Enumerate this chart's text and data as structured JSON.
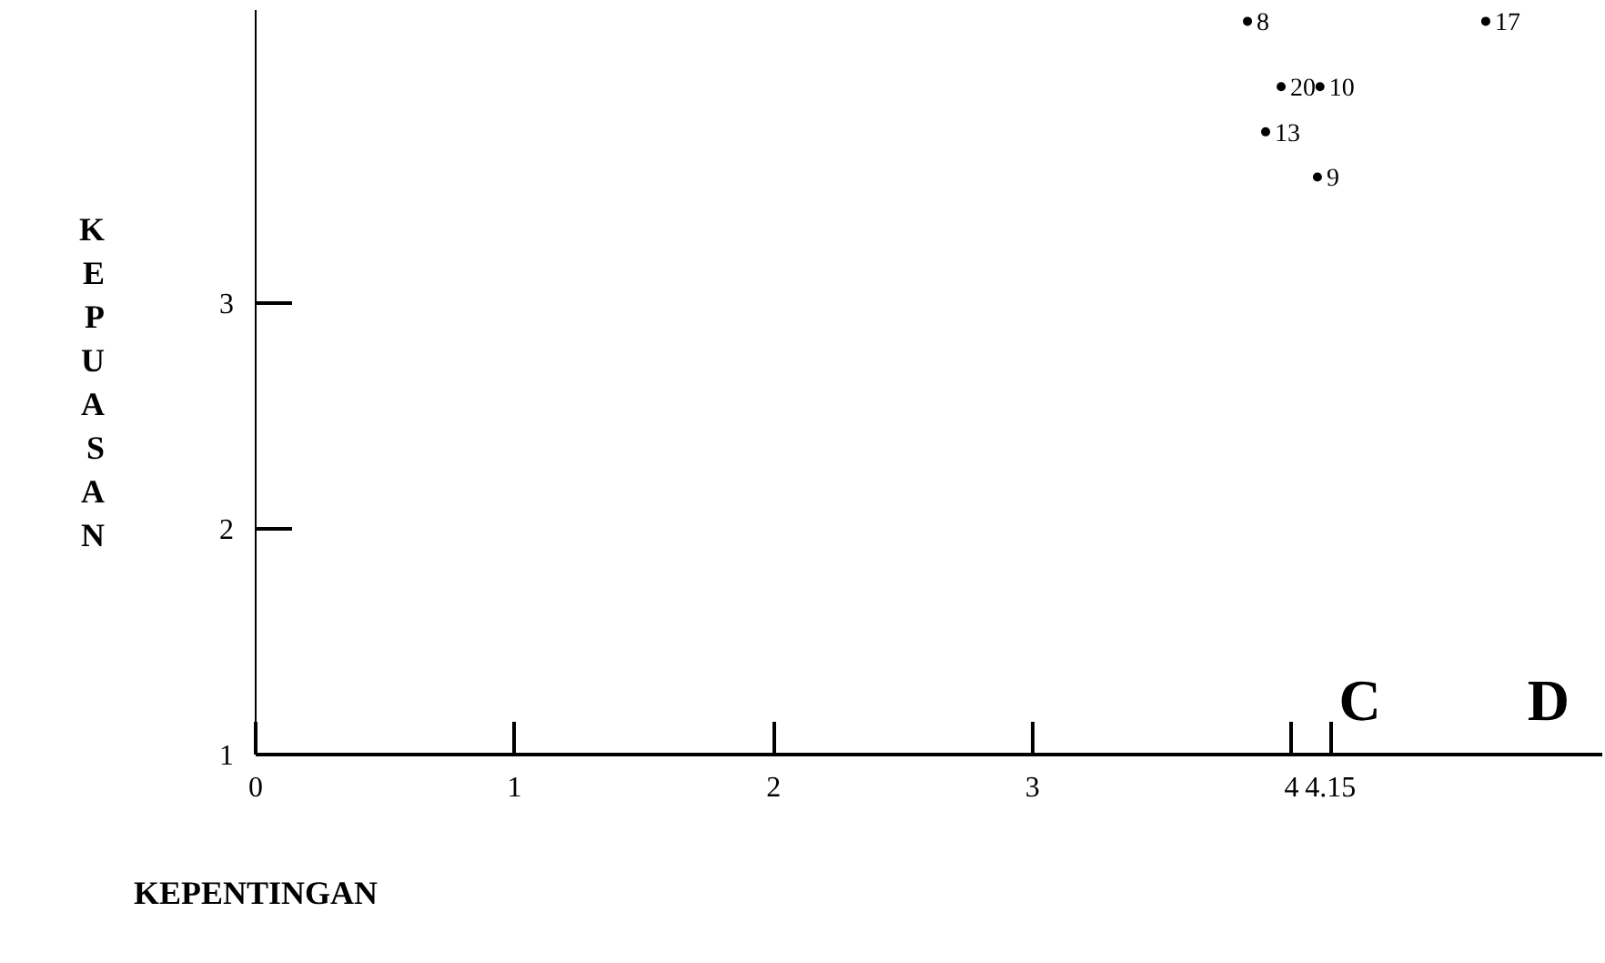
{
  "chart_data": {
    "type": "scatter",
    "xlabel": "KEPENTINGAN",
    "ylabel": "KEPUASAN",
    "x": [
      3.83,
      4.75,
      3.96,
      4.11,
      3.9,
      4.1
    ],
    "values": [
      4.25,
      4.25,
      3.96,
      3.96,
      3.76,
      3.56
    ],
    "color": "#000000",
    "marker": "circle",
    "grid": false,
    "xlim": [
      0,
      5.2
    ],
    "xticks": [
      0,
      1,
      2,
      3,
      4,
      4.15
    ],
    "ylim": [
      1,
      4.3
    ],
    "yticks": [
      1,
      2,
      3
    ],
    "annotations": [
      {
        "text": "8",
        "x": 3.83,
        "y": 4.25
      },
      {
        "text": "17",
        "x": 4.75,
        "y": 4.25
      },
      {
        "text": "20",
        "x": 3.96,
        "y": 3.96
      },
      {
        "text": "10",
        "x": 4.11,
        "y": 3.96
      },
      {
        "text": "13",
        "x": 3.9,
        "y": 3.76
      },
      {
        "text": "9",
        "x": 4.1,
        "y": 3.56
      },
      "C",
      "D"
    ]
  }
}
